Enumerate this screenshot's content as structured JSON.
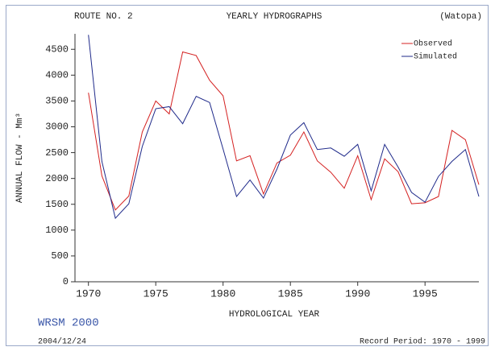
{
  "chart_data": {
    "type": "line",
    "route": "ROUTE NO. 2",
    "title": "YEARLY HYDROGRAPHS",
    "station": "(Watopa)",
    "xlabel": "HYDROLOGICAL YEAR",
    "ylabel": "ANNUAL FLOW - Mm³",
    "software": "WRSM 2000",
    "date": "2004/12/24",
    "record_period": "Record Period: 1970 - 1999",
    "x": [
      1970,
      1971,
      1972,
      1973,
      1974,
      1975,
      1976,
      1977,
      1978,
      1979,
      1980,
      1981,
      1982,
      1983,
      1984,
      1985,
      1986,
      1987,
      1988,
      1989,
      1990,
      1991,
      1992,
      1993,
      1994,
      1995,
      1996,
      1997,
      1998,
      1999
    ],
    "series": [
      {
        "name": "Observed",
        "color": "#d42020",
        "values": [
          3660,
          2050,
          1390,
          1660,
          2900,
          3500,
          3250,
          4450,
          4380,
          3900,
          3600,
          2340,
          2440,
          1700,
          2300,
          2450,
          2900,
          2340,
          2120,
          1810,
          2440,
          1590,
          2380,
          2130,
          1510,
          1530,
          1650,
          2930,
          2750,
          1880
        ]
      },
      {
        "name": "Simulated",
        "color": "#1f2a8a",
        "values": [
          4780,
          2330,
          1230,
          1510,
          2620,
          3350,
          3390,
          3060,
          3590,
          3470,
          2570,
          1650,
          1970,
          1620,
          2180,
          2840,
          3080,
          2560,
          2590,
          2430,
          2660,
          1760,
          2660,
          2220,
          1730,
          1540,
          2040,
          2330,
          2560,
          1650
        ]
      }
    ],
    "xlim": [
      1969,
      1999
    ],
    "xticks": [
      1970,
      1975,
      1980,
      1985,
      1990,
      1995
    ],
    "ylim": [
      0,
      4800
    ],
    "yticks": [
      0,
      500,
      1000,
      1500,
      2000,
      2500,
      3000,
      3500,
      4000,
      4500
    ],
    "grid": false,
    "legend": "upper right"
  }
}
